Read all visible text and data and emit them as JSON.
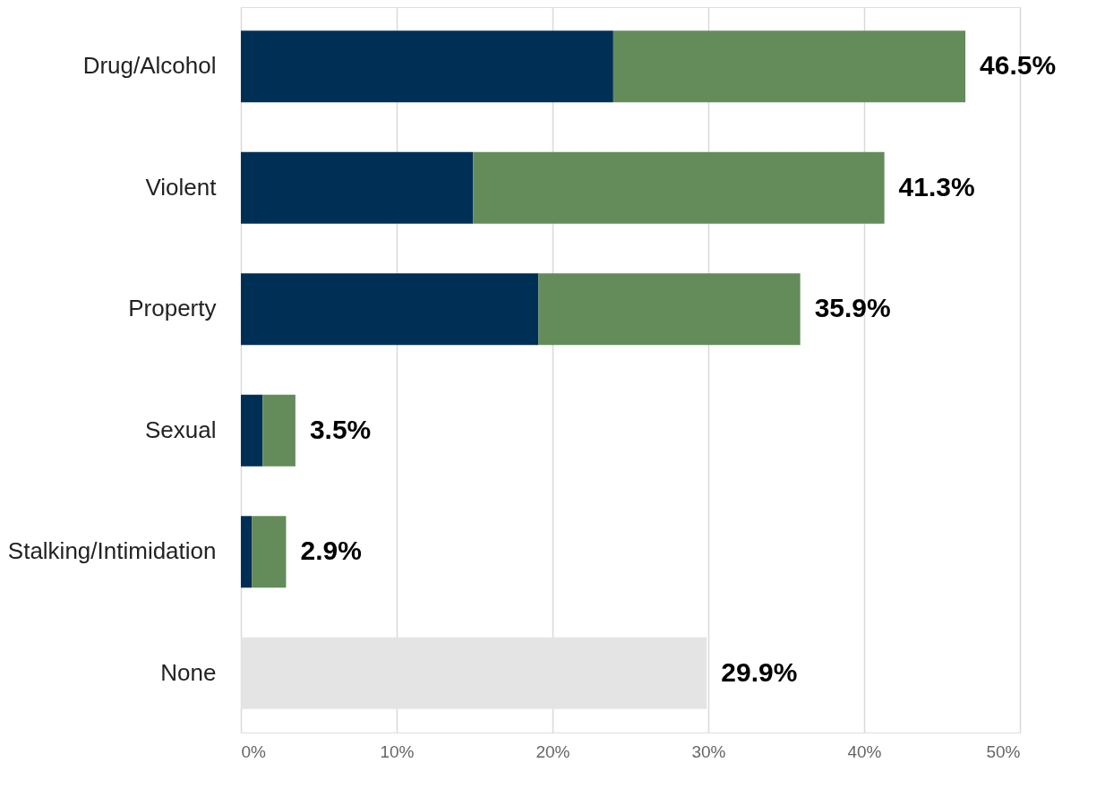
{
  "chart_data": {
    "type": "bar",
    "orientation": "horizontal",
    "stacked": true,
    "categories": [
      "Drug/Alcohol",
      "Violent",
      "Property",
      "Sexual",
      "Stalking/Intimidation",
      "None"
    ],
    "series": [
      {
        "color": "#002f56",
        "values": [
          23.9,
          14.9,
          19.1,
          1.4,
          0.7,
          null
        ]
      },
      {
        "color": "#638c5a",
        "values": [
          22.6,
          26.4,
          16.8,
          2.1,
          2.2,
          null
        ]
      },
      {
        "color": "#e4e4e4",
        "values": [
          null,
          null,
          null,
          null,
          null,
          29.9
        ]
      }
    ],
    "totals": [
      "46.5%",
      "41.3%",
      "35.9%",
      "3.5%",
      "2.9%",
      "29.9%"
    ],
    "xlim": [
      0,
      50
    ],
    "xticks": [
      {
        "value": 0,
        "label": "0%"
      },
      {
        "value": 10,
        "label": "10%"
      },
      {
        "value": 20,
        "label": "20%"
      },
      {
        "value": 30,
        "label": "30%"
      },
      {
        "value": 40,
        "label": "40%"
      },
      {
        "value": 50,
        "label": "50%"
      }
    ],
    "grid": "x",
    "legend": false
  }
}
